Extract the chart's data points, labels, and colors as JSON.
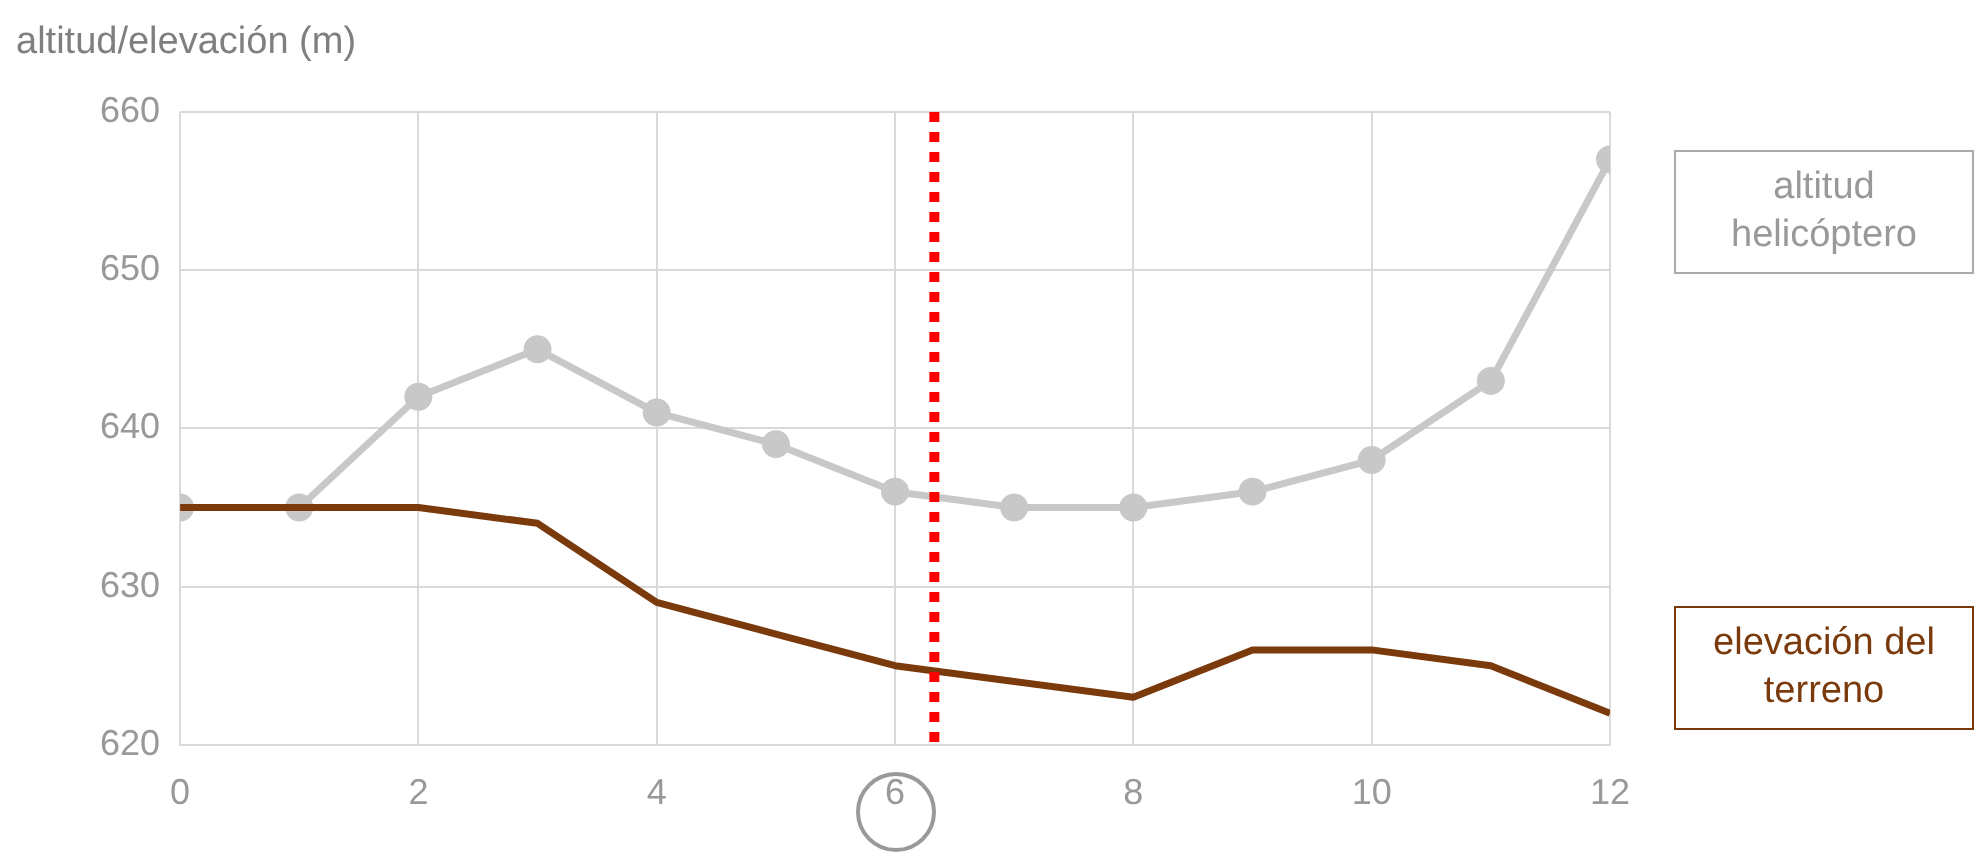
{
  "chart_data": {
    "type": "line",
    "ylabel": "altitud/elevación (m)",
    "x": [
      0,
      1,
      2,
      3,
      4,
      5,
      6,
      7,
      8,
      9,
      10,
      11,
      12
    ],
    "series": [
      {
        "name": "altitud helicóptero",
        "color": "#c8c8c8",
        "marker": "circle",
        "values": [
          635,
          635,
          642,
          645,
          641,
          639,
          636,
          635,
          635,
          636,
          638,
          643,
          657
        ]
      },
      {
        "name": "elevación del terreno",
        "color": "#7b3a0c",
        "marker": "none",
        "values": [
          635,
          635,
          635,
          634,
          629,
          627,
          625,
          624,
          623,
          626,
          626,
          625,
          622
        ]
      }
    ],
    "xlim": [
      0,
      12
    ],
    "xticks": [
      0,
      2,
      4,
      6,
      8,
      10,
      12
    ],
    "ylim": [
      620,
      660
    ],
    "yticks": [
      620,
      630,
      640,
      650,
      660
    ],
    "grid": true,
    "legend": false,
    "line_style": "solid",
    "ref_lines": [
      {
        "axis": "x",
        "value": 6.33,
        "color": "#ff0000",
        "line_style": "dotted"
      }
    ]
  }
}
